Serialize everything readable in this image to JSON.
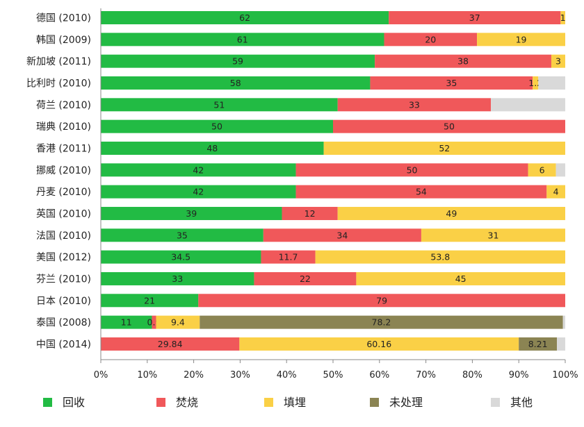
{
  "chart_data": {
    "type": "bar",
    "orientation": "horizontal",
    "stacked": true,
    "normalized_percent": true,
    "categories": [
      "德国 (2010)",
      "韩国 (2009)",
      "新加坡 (2011)",
      "比利时 (2010)",
      "荷兰 (2010)",
      "瑞典 (2010)",
      "香港 (2011)",
      "挪威 (2010)",
      "丹麦 (2010)",
      "英国 (2010)",
      "法国 (2010)",
      "美国 (2012)",
      "芬兰 (2010)",
      "日本 (2010)",
      "泰国 (2008)",
      "中国 (2014)"
    ],
    "series": [
      {
        "name": "回收",
        "color": "#22bb44",
        "values": [
          62,
          61,
          59,
          58,
          51,
          50,
          48,
          42,
          42,
          39,
          35,
          34.5,
          33,
          21,
          11,
          0
        ],
        "labels": [
          "62",
          "61",
          "59",
          "58",
          "51",
          "50",
          "48",
          "42",
          "42",
          "39",
          "35",
          "34.5",
          "33",
          "21",
          "11",
          ""
        ]
      },
      {
        "name": "焚烧",
        "color": "#f0585a",
        "values": [
          37,
          20,
          38,
          35,
          33,
          50,
          0,
          50,
          54,
          12,
          34,
          11.7,
          22,
          79,
          0.9,
          29.84
        ],
        "labels": [
          "37",
          "20",
          "38",
          "35",
          "33",
          "50",
          "",
          "50",
          "54",
          "12",
          "34",
          "11.7",
          "22",
          "79",
          "0.9",
          "29.84"
        ]
      },
      {
        "name": "填埋",
        "color": "#fad046",
        "values": [
          1,
          19,
          3,
          1.2,
          0,
          0,
          52,
          6,
          4,
          49,
          31,
          53.8,
          45,
          0,
          9.4,
          60.16
        ],
        "labels": [
          "1",
          "19",
          "3",
          "1.2",
          "",
          "",
          "52",
          "6",
          "4",
          "49",
          "31",
          "53.8",
          "45",
          "",
          "9.4",
          "60.16"
        ]
      },
      {
        "name": "未处理",
        "color": "#8b8453",
        "values": [
          0,
          0,
          0,
          0,
          0,
          0,
          0,
          0,
          0,
          0,
          0,
          0,
          0,
          0,
          78.2,
          8.21
        ],
        "labels": [
          "",
          "",
          "",
          "",
          "",
          "",
          "",
          "",
          "",
          "",
          "",
          "",
          "",
          "",
          "78.2",
          "8.21"
        ]
      },
      {
        "name": "其他",
        "color": "#d9d9d9",
        "values": [
          0,
          0,
          0,
          5.8,
          16,
          0,
          0,
          2,
          0,
          0,
          0,
          0,
          0,
          0,
          0.5,
          1.79
        ],
        "labels": [
          "",
          "",
          "",
          "",
          "",
          "",
          "",
          "",
          "",
          "",
          "",
          "",
          "",
          "",
          "",
          ""
        ]
      }
    ],
    "xlim": [
      0,
      100
    ],
    "x_ticks": [
      "0%",
      "10%",
      "20%",
      "30%",
      "40%",
      "50%",
      "60%",
      "70%",
      "80%",
      "90%",
      "100%"
    ],
    "grid": false,
    "legend_position": "bottom"
  }
}
